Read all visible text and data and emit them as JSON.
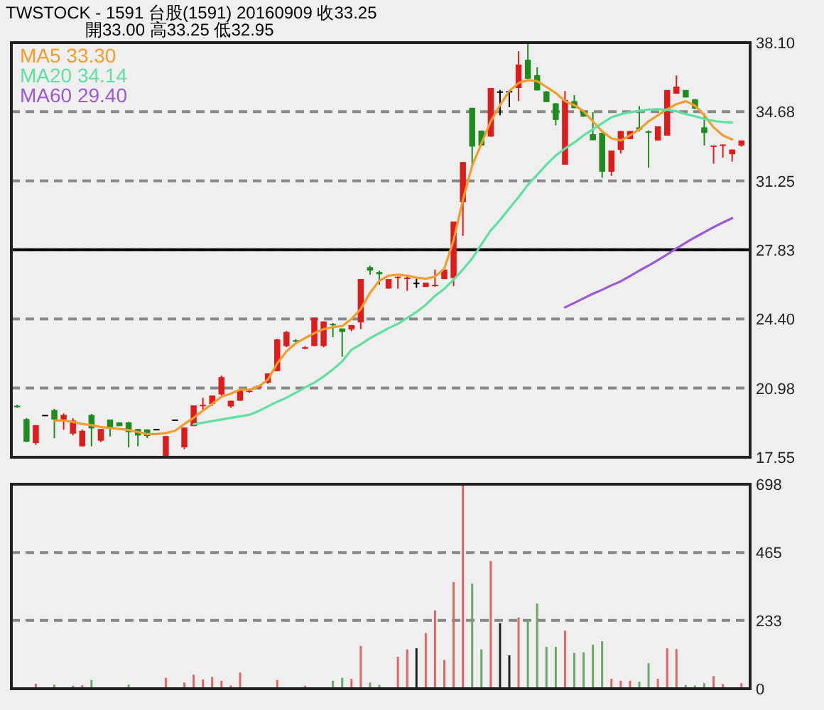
{
  "chart_data": [
    {
      "type": "candlestick",
      "title": "TWSTOCK - 1591  台股(1591) 20160909   收33.25",
      "subtitle": "開33.00   高33.25   低32.95",
      "categories": [
        null,
        null,
        null,
        null,
        null,
        null,
        null,
        null,
        null,
        null,
        null,
        null,
        null,
        null,
        null,
        null,
        null,
        null,
        null,
        null,
        null,
        null,
        null,
        null,
        null,
        null,
        null,
        null,
        null,
        null,
        null,
        null,
        null,
        null,
        null,
        null,
        null,
        null,
        null,
        null,
        null,
        null,
        null,
        null,
        null,
        null,
        null,
        null,
        null,
        null,
        null,
        null,
        null,
        null,
        null,
        null,
        null,
        null,
        null,
        null,
        null,
        null,
        null,
        null,
        null,
        null,
        null,
        null,
        null,
        null,
        null,
        null,
        null,
        null,
        null,
        null,
        null,
        null,
        null
      ],
      "ohlc": [
        [
          20.1,
          20.15,
          20.0,
          20.05
        ],
        [
          19.44,
          19.5,
          18.3,
          18.32
        ],
        [
          18.25,
          19.14,
          18.16,
          19.14
        ],
        [
          19.65,
          19.65,
          19.65,
          19.65
        ],
        [
          19.89,
          19.95,
          18.49,
          19.42
        ],
        [
          19.42,
          19.72,
          18.91,
          19.65
        ],
        [
          18.72,
          19.49,
          18.63,
          19.37
        ],
        [
          18.09,
          18.93,
          18.09,
          18.86
        ],
        [
          19.65,
          19.7,
          18.09,
          18.98
        ],
        [
          18.37,
          18.95,
          18.3,
          18.95
        ],
        [
          19.42,
          19.42,
          18.58,
          18.98
        ],
        [
          19.28,
          19.28,
          19.09,
          19.09
        ],
        [
          19.28,
          19.3,
          18.04,
          18.79
        ],
        [
          18.95,
          18.95,
          18.09,
          18.63
        ],
        [
          18.93,
          18.93,
          18.5,
          18.6
        ],
        [
          18.95,
          18.95,
          18.95,
          18.95
        ],
        [
          17.62,
          18.6,
          17.6,
          18.6
        ],
        [
          19.42,
          19.42,
          19.42,
          19.42
        ],
        [
          18.04,
          19.02,
          17.95,
          19.02
        ],
        [
          19.09,
          20.12,
          19.09,
          20.12
        ],
        [
          20.12,
          20.5,
          19.9,
          20.15
        ],
        [
          20.19,
          20.61,
          20.1,
          20.61
        ],
        [
          20.66,
          21.6,
          20.6,
          21.52
        ],
        [
          20.07,
          20.35,
          20.0,
          20.35
        ],
        [
          20.35,
          20.89,
          20.35,
          20.89
        ],
        [
          20.82,
          20.9,
          20.75,
          20.85
        ],
        [
          21.0,
          21.1,
          20.95,
          21.1
        ],
        [
          21.24,
          21.71,
          21.2,
          21.71
        ],
        [
          21.82,
          23.41,
          21.82,
          23.39
        ],
        [
          23.06,
          23.81,
          23.0,
          23.76
        ],
        [
          23.35,
          23.4,
          23.25,
          23.28
        ],
        [
          22.93,
          23.05,
          22.9,
          23.0
        ],
        [
          23.06,
          24.47,
          23.06,
          24.47
        ],
        [
          23.06,
          24.28,
          23.0,
          24.28
        ],
        [
          24.16,
          24.2,
          23.5,
          24.1
        ],
        [
          23.93,
          23.93,
          22.53,
          23.76
        ],
        [
          23.88,
          24.1,
          23.8,
          24.1
        ],
        [
          24.23,
          26.38,
          23.9,
          26.38
        ],
        [
          26.97,
          27.05,
          26.6,
          26.8
        ],
        [
          26.73,
          26.8,
          26.1,
          26.62
        ],
        [
          25.91,
          26.38,
          25.91,
          26.38
        ],
        [
          26.45,
          26.5,
          25.9,
          26.5
        ],
        [
          26.4,
          26.55,
          25.8,
          26.45
        ],
        [
          26.2,
          26.4,
          25.95,
          26.2
        ],
        [
          25.99,
          26.2,
          25.99,
          26.2
        ],
        [
          26.05,
          26.85,
          26.0,
          26.1
        ],
        [
          26.38,
          26.85,
          26.38,
          26.85
        ],
        [
          26.43,
          29.23,
          26.03,
          29.23
        ],
        [
          30.19,
          32.18,
          28.53,
          32.18
        ],
        [
          34.87,
          34.87,
          32.0,
          32.95
        ],
        [
          33.74,
          33.74,
          33.0,
          33.0
        ],
        [
          33.44,
          35.85,
          33.44,
          35.85
        ],
        [
          35.68,
          35.75,
          34.5,
          35.68
        ],
        [
          35.7,
          35.75,
          34.9,
          35.7
        ],
        [
          35.85,
          37.67,
          35.2,
          37.01
        ],
        [
          37.25,
          38.05,
          36.31,
          36.31
        ],
        [
          36.48,
          36.88,
          35.73,
          35.73
        ],
        [
          35.68,
          35.7,
          35.15,
          35.15
        ],
        [
          35.09,
          35.1,
          34.0,
          34.27
        ],
        [
          32.05,
          35.7,
          32.05,
          35.25
        ],
        [
          35.2,
          35.5,
          34.85,
          34.85
        ],
        [
          34.73,
          34.75,
          34.43,
          34.43
        ],
        [
          33.56,
          34.66,
          33.26,
          33.26
        ],
        [
          33.63,
          33.63,
          31.4,
          31.7
        ],
        [
          31.7,
          32.75,
          31.5,
          32.75
        ],
        [
          32.78,
          33.72,
          32.6,
          33.72
        ],
        [
          33.32,
          33.72,
          33.32,
          33.72
        ],
        [
          33.9,
          34.95,
          33.7,
          33.79
        ],
        [
          33.7,
          33.75,
          31.9,
          33.65
        ],
        [
          33.25,
          33.95,
          33.25,
          33.95
        ],
        [
          33.49,
          35.75,
          33.49,
          35.75
        ],
        [
          35.57,
          36.47,
          35.57,
          35.92
        ],
        [
          35.75,
          35.75,
          35.38,
          35.38
        ],
        [
          35.29,
          35.3,
          34.82,
          34.82
        ],
        [
          33.9,
          34.6,
          33.0,
          33.62
        ],
        [
          32.95,
          33.0,
          32.1,
          33.0
        ],
        [
          33.0,
          33.05,
          32.4,
          33.05
        ],
        [
          32.57,
          32.8,
          32.2,
          32.8
        ],
        [
          33.0,
          33.25,
          32.95,
          33.25
        ]
      ],
      "colors": [
        "#1e8c1e",
        "#1e8c1e",
        "#dd1c1c",
        "#000000",
        "#1e8c1e",
        "#dd1c1c",
        "#dd1c1c",
        "#dd1c1c",
        "#1e8c1e",
        "#dd1c1c",
        "#1e8c1e",
        "#1e8c1e",
        "#1e8c1e",
        "#1e8c1e",
        "#1e8c1e",
        "#000000",
        "#dd1c1c",
        "#000000",
        "#dd1c1c",
        "#dd1c1c",
        "#dd1c1c",
        "#dd1c1c",
        "#dd1c1c",
        "#dd1c1c",
        "#dd1c1c",
        "#dd1c1c",
        "#dd1c1c",
        "#dd1c1c",
        "#dd1c1c",
        "#dd1c1c",
        "#1e8c1e",
        "#dd1c1c",
        "#dd1c1c",
        "#dd1c1c",
        "#1e8c1e",
        "#1e8c1e",
        "#dd1c1c",
        "#dd1c1c",
        "#1e8c1e",
        "#1e8c1e",
        "#dd1c1c",
        "#dd1c1c",
        "#dd1c1c",
        "#000000",
        "#dd1c1c",
        "#dd1c1c",
        "#dd1c1c",
        "#dd1c1c",
        "#dd1c1c",
        "#1e8c1e",
        "#1e8c1e",
        "#dd1c1c",
        "#000000",
        "#000000",
        "#dd1c1c",
        "#1e8c1e",
        "#1e8c1e",
        "#1e8c1e",
        "#1e8c1e",
        "#dd1c1c",
        "#1e8c1e",
        "#1e8c1e",
        "#1e8c1e",
        "#1e8c1e",
        "#dd1c1c",
        "#dd1c1c",
        "#dd1c1c",
        "#1e8c1e",
        "#1e8c1e",
        "#dd1c1c",
        "#dd1c1c",
        "#dd1c1c",
        "#1e8c1e",
        "#1e8c1e",
        "#1e8c1e",
        "#dd1c1c",
        "#dd1c1c",
        "#dd1c1c",
        "#dd1c1c"
      ],
      "series": [
        {
          "name": "MA5 33.30",
          "type": "line",
          "color": "#f39c2b",
          "values": [
            null,
            null,
            null,
            null,
            19.37,
            19.37,
            19.3,
            19.2,
            19.14,
            19.05,
            19.0,
            18.95,
            18.9,
            18.8,
            18.7,
            18.7,
            18.75,
            18.86,
            19.2,
            19.5,
            19.86,
            20.2,
            20.55,
            20.7,
            20.9,
            20.9,
            21.05,
            21.4,
            22.2,
            22.8,
            23.2,
            23.46,
            23.7,
            23.9,
            24.0,
            24.05,
            24.4,
            24.9,
            25.7,
            26.3,
            26.55,
            26.6,
            26.55,
            26.45,
            26.4,
            26.5,
            26.9,
            28.3,
            30.3,
            32.0,
            33.1,
            34.2,
            35.0,
            35.7,
            36.1,
            36.24,
            36.19,
            35.9,
            35.6,
            35.2,
            35.0,
            34.7,
            34.2,
            33.7,
            33.35,
            33.25,
            33.5,
            33.8,
            34.2,
            34.5,
            34.8,
            35.05,
            35.2,
            34.97,
            34.5,
            33.9,
            33.5,
            33.3,
            null
          ]
        },
        {
          "name": "MA20 34.14",
          "type": "line",
          "color": "#5ee0a0",
          "values": [
            null,
            null,
            null,
            null,
            null,
            null,
            null,
            null,
            null,
            null,
            null,
            null,
            null,
            null,
            null,
            null,
            null,
            null,
            null,
            19.18,
            19.26,
            19.34,
            19.42,
            19.5,
            19.58,
            19.65,
            19.84,
            20.07,
            20.3,
            20.5,
            20.75,
            21.01,
            21.25,
            21.55,
            21.9,
            22.3,
            22.88,
            23.15,
            23.45,
            23.7,
            23.95,
            24.16,
            24.45,
            24.75,
            25.1,
            25.55,
            25.9,
            26.35,
            26.85,
            27.4,
            28.1,
            28.8,
            29.3,
            29.88,
            30.45,
            31.05,
            31.55,
            32.05,
            32.5,
            32.85,
            33.15,
            33.5,
            33.8,
            34.1,
            34.4,
            34.55,
            34.65,
            34.72,
            34.78,
            34.8,
            34.77,
            34.7,
            34.56,
            34.45,
            34.32,
            34.22,
            34.16,
            34.14,
            null
          ]
        },
        {
          "name": "MA60 29.40",
          "type": "line",
          "color": "#9b59d8",
          "values": [
            null,
            null,
            null,
            null,
            null,
            null,
            null,
            null,
            null,
            null,
            null,
            null,
            null,
            null,
            null,
            null,
            null,
            null,
            null,
            null,
            null,
            null,
            null,
            null,
            null,
            null,
            null,
            null,
            null,
            null,
            null,
            null,
            null,
            null,
            null,
            null,
            null,
            null,
            null,
            null,
            null,
            null,
            null,
            null,
            null,
            null,
            null,
            null,
            null,
            null,
            null,
            null,
            null,
            null,
            null,
            null,
            null,
            null,
            null,
            24.98,
            25.2,
            25.43,
            25.65,
            25.85,
            26.07,
            26.27,
            26.53,
            26.8,
            27.05,
            27.32,
            27.6,
            27.9,
            28.18,
            28.45,
            28.7,
            28.95,
            29.18,
            29.4,
            null
          ]
        }
      ],
      "ylim": [
        17.55,
        38.1
      ],
      "yticks": [
        {
          "value": 38.1,
          "label": "38.10"
        },
        34.68,
        31.25,
        27.83,
        {
          "value": 24.4,
          "label": "24.40"
        },
        20.98,
        17.55
      ],
      "grid": "y",
      "legend": "top left",
      "tick_labels": "y",
      "ref_lines": [
        {
          "axis": "y",
          "value": 27.83,
          "color": "#000000",
          "line_style": "solid"
        }
      ]
    },
    {
      "type": "bar",
      "categories": [
        null,
        null,
        null,
        null,
        null,
        null,
        null,
        null,
        null,
        null,
        null,
        null,
        null,
        null,
        null,
        null,
        null,
        null,
        null,
        null,
        null,
        null,
        null,
        null,
        null,
        null,
        null,
        null,
        null,
        null,
        null,
        null,
        null,
        null,
        null,
        null,
        null,
        null,
        null,
        null,
        null,
        null,
        null,
        null,
        null,
        null,
        null,
        null,
        null,
        null,
        null,
        null,
        null,
        null,
        null,
        null,
        null,
        null,
        null,
        null,
        null,
        null,
        null,
        null,
        null,
        null,
        null,
        null,
        null,
        null,
        null,
        null,
        null,
        null,
        null,
        null,
        null,
        null,
        null
      ],
      "values": [
        null,
        null,
        17,
        null,
        14,
        null,
        10,
        12,
        30,
        null,
        null,
        null,
        14,
        null,
        null,
        null,
        37,
        null,
        21,
        48,
        32,
        40,
        27,
        11,
        55,
        null,
        null,
        null,
        30,
        null,
        null,
        10,
        null,
        null,
        27,
        37,
        34,
        146,
        21,
        13,
        null,
        109,
        134,
        138,
        190,
        267,
        98,
        364,
        698,
        359,
        134,
        436,
        224,
        114,
        243,
        235,
        291,
        143,
        143,
        198,
        122,
        124,
        150,
        162,
        34,
        27,
        27,
        24,
        87,
        34,
        138,
        135,
        13,
        11,
        19,
        43,
        16,
        null,
        19
      ],
      "colors": [
        null,
        null,
        "#e06666",
        null,
        "#6aa86a",
        null,
        "#e06666",
        "#e06666",
        "#6aa86a",
        null,
        null,
        null,
        "#6aa86a",
        null,
        null,
        null,
        "#e06666",
        null,
        "#e06666",
        "#e06666",
        "#e06666",
        "#e06666",
        "#e06666",
        "#e06666",
        "#e06666",
        null,
        null,
        null,
        "#e06666",
        null,
        null,
        "#e06666",
        null,
        null,
        "#6aa86a",
        "#6aa86a",
        "#e06666",
        "#e06666",
        "#6aa86a",
        "#6aa86a",
        null,
        "#e06666",
        "#e06666",
        "#222222",
        "#e06666",
        "#e06666",
        "#e06666",
        "#e06666",
        "#e06666",
        "#6aa86a",
        "#6aa86a",
        "#e06666",
        "#222222",
        "#222222",
        "#e06666",
        "#6aa86a",
        "#6aa86a",
        "#6aa86a",
        "#6aa86a",
        "#e06666",
        "#6aa86a",
        "#6aa86a",
        "#6aa86a",
        "#6aa86a",
        "#e06666",
        "#e06666",
        "#e06666",
        "#6aa86a",
        "#6aa86a",
        "#e06666",
        "#e06666",
        "#e06666",
        "#6aa86a",
        "#6aa86a",
        "#6aa86a",
        "#e06666",
        "#e06666",
        null,
        "#e06666"
      ],
      "ylim": [
        0,
        698
      ],
      "yticks": [
        698,
        465,
        233,
        0
      ],
      "grid": "y",
      "tick_labels": "y"
    }
  ]
}
